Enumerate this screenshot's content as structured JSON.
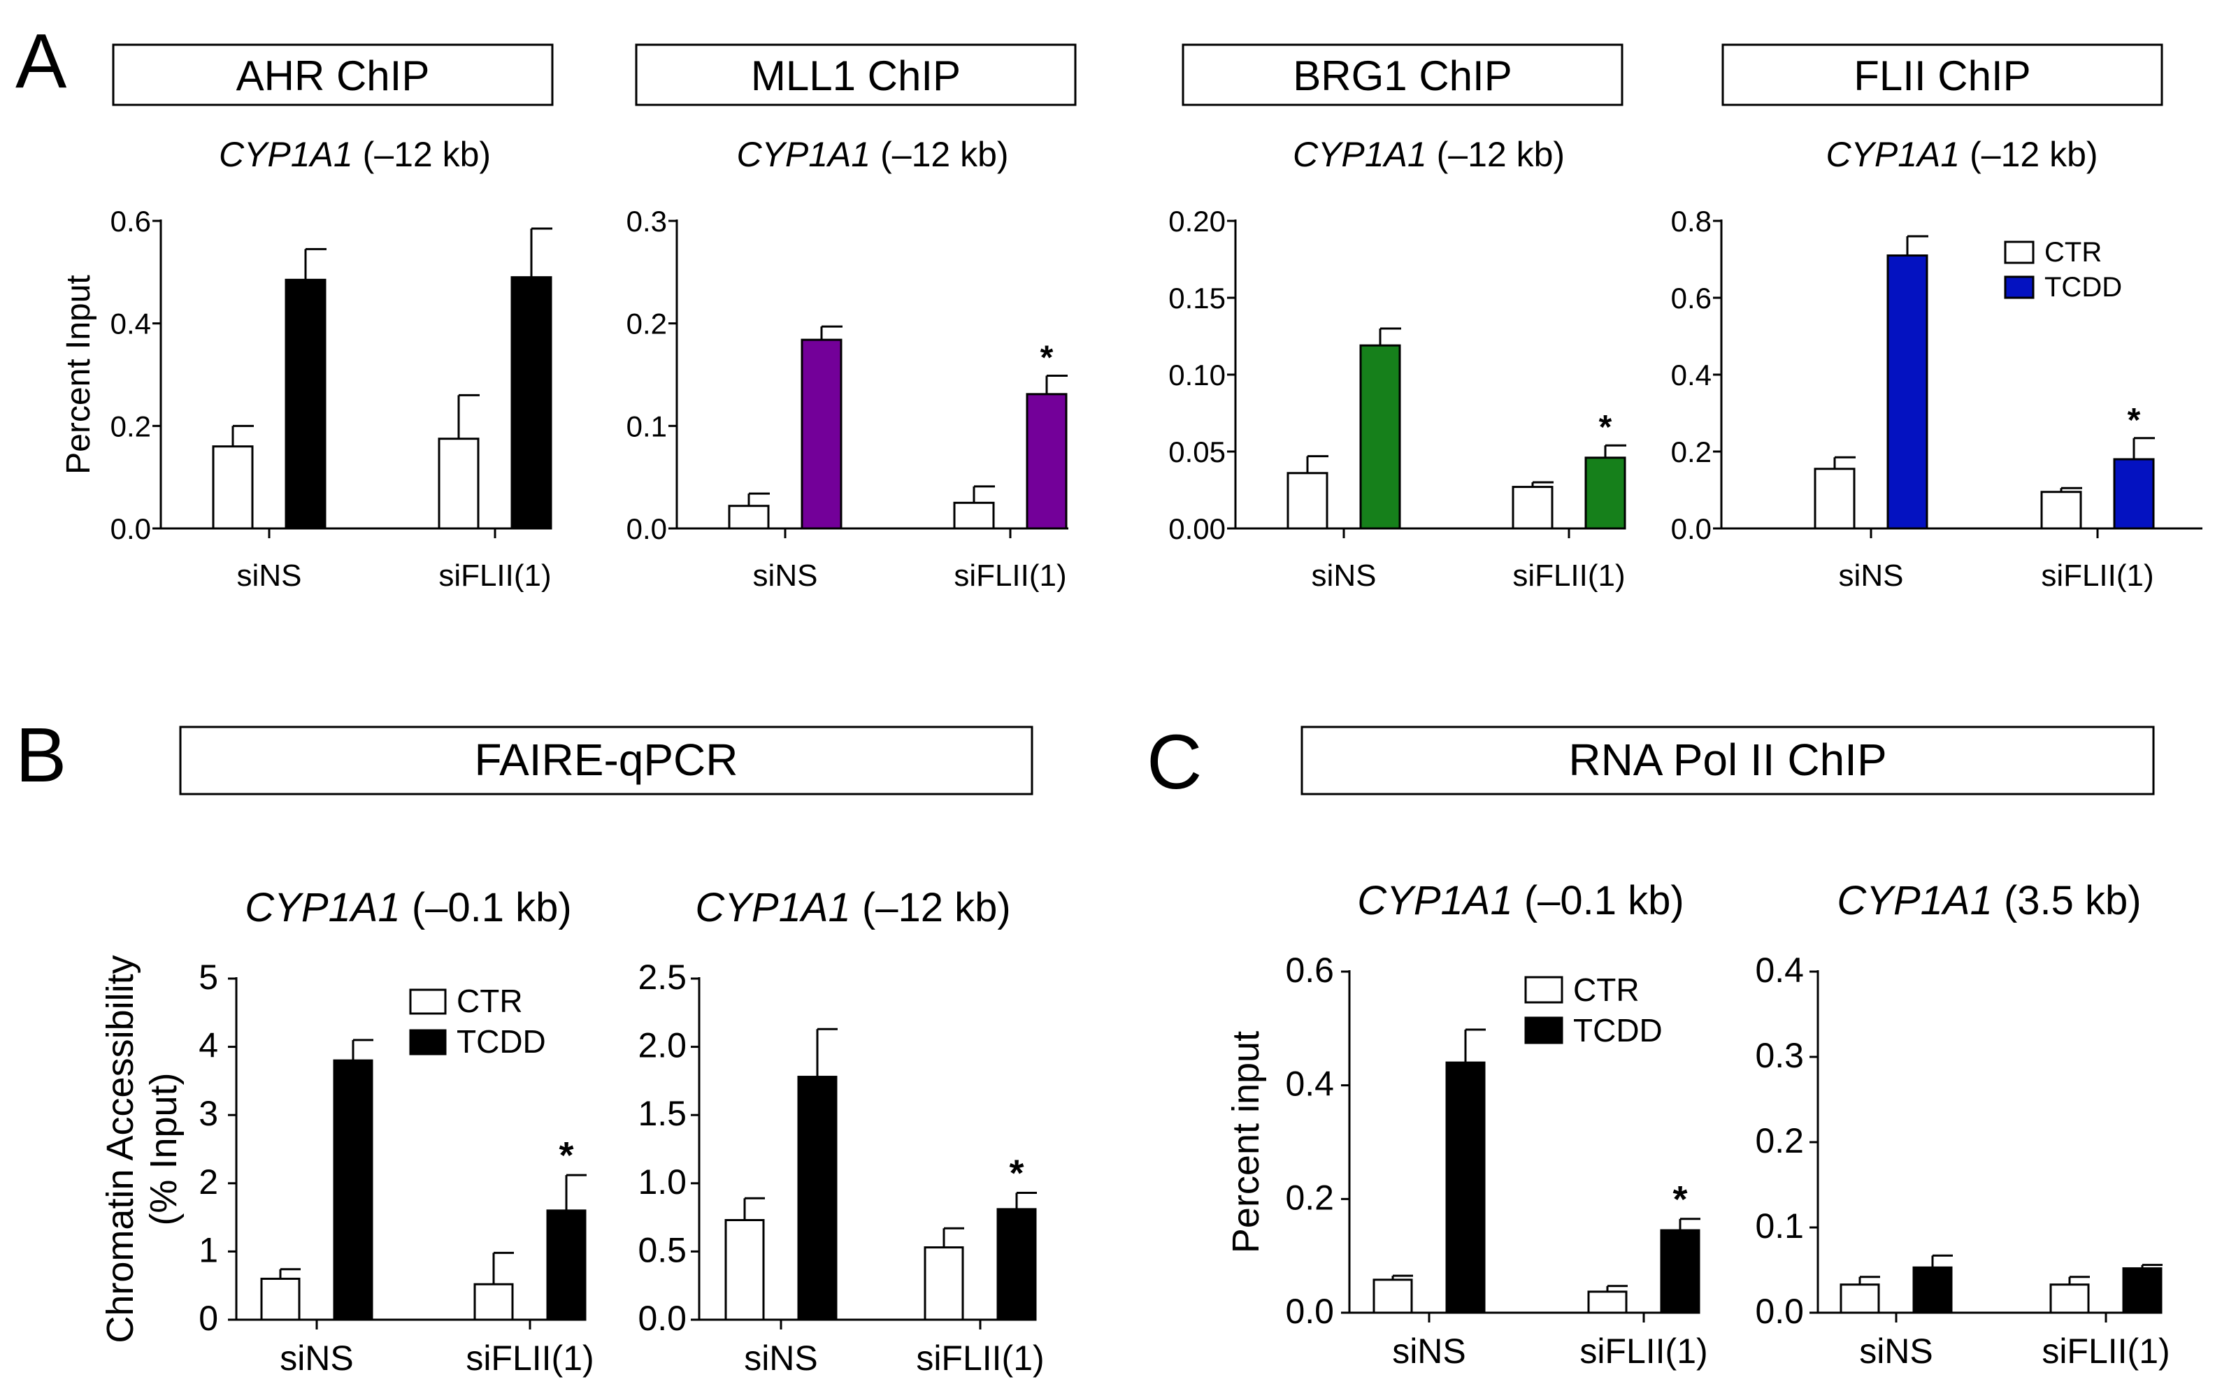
{
  "colors": {
    "ctr": "#ffffff",
    "black": "#000000",
    "purple": "#730099",
    "green": "#16801b",
    "blue": "#0412c1"
  },
  "panels": [
    {
      "letter": "A"
    },
    {
      "letter": "B",
      "header": "FAIRE-qPCR"
    },
    {
      "letter": "C",
      "header": "RNA Pol II ChIP"
    }
  ],
  "chart_data": [
    {
      "type": "bar",
      "panel": "A",
      "header": "AHR ChIP",
      "title_gene": "CYP1A1",
      "title_pos": " (–12 kb)",
      "ylabel": "Percent Input",
      "ylim": [
        0,
        0.6
      ],
      "yticks": [
        "0.0",
        "0.2",
        "0.4",
        "0.6"
      ],
      "categories": [
        "siNS",
        "siFLII(1)"
      ],
      "tcdd_color": "black",
      "legend": null,
      "series": [
        {
          "name": "CTR",
          "values": [
            0.16,
            0.175
          ],
          "errors": [
            0.04,
            0.085
          ]
        },
        {
          "name": "TCDD",
          "values": [
            0.485,
            0.49
          ],
          "errors": [
            0.06,
            0.095
          ]
        }
      ],
      "stars": [
        "",
        ""
      ]
    },
    {
      "type": "bar",
      "panel": "A",
      "header": "MLL1 ChIP",
      "title_gene": "CYP1A1",
      "title_pos": " (–12 kb)",
      "ylabel": "",
      "ylim": [
        0,
        0.3
      ],
      "yticks": [
        "0.0",
        "0.1",
        "0.2",
        "0.3"
      ],
      "categories": [
        "siNS",
        "siFLII(1)"
      ],
      "tcdd_color": "purple",
      "legend": null,
      "series": [
        {
          "name": "CTR",
          "values": [
            0.022,
            0.025
          ],
          "errors": [
            0.012,
            0.016
          ]
        },
        {
          "name": "TCDD",
          "values": [
            0.184,
            0.131
          ],
          "errors": [
            0.013,
            0.018
          ]
        }
      ],
      "stars": [
        "",
        "*"
      ]
    },
    {
      "type": "bar",
      "panel": "A",
      "header": "BRG1 ChIP",
      "title_gene": "CYP1A1",
      "title_pos": " (–12 kb)",
      "ylabel": "",
      "ylim": [
        0,
        0.2
      ],
      "yticks": [
        "0.00",
        "0.05",
        "0.10",
        "0.15",
        "0.20"
      ],
      "categories": [
        "siNS",
        "siFLII(1)"
      ],
      "tcdd_color": "green",
      "legend": null,
      "series": [
        {
          "name": "CTR",
          "values": [
            0.036,
            0.027
          ],
          "errors": [
            0.011,
            0.003
          ]
        },
        {
          "name": "TCDD",
          "values": [
            0.119,
            0.046
          ],
          "errors": [
            0.011,
            0.008
          ]
        }
      ],
      "stars": [
        "",
        "*"
      ]
    },
    {
      "type": "bar",
      "panel": "A",
      "header": "FLII ChIP",
      "title_gene": "CYP1A1",
      "title_pos": " (–12 kb)",
      "ylabel": "",
      "ylim": [
        0,
        0.8
      ],
      "yticks": [
        "0.0",
        "0.2",
        "0.4",
        "0.6",
        "0.8"
      ],
      "categories": [
        "siNS",
        "siFLII(1)"
      ],
      "tcdd_color": "blue",
      "legend": {
        "ctr": "CTR",
        "tcdd": "TCDD",
        "placement": "top-right"
      },
      "series": [
        {
          "name": "CTR",
          "values": [
            0.155,
            0.095
          ],
          "errors": [
            0.03,
            0.01
          ]
        },
        {
          "name": "TCDD",
          "values": [
            0.71,
            0.18
          ],
          "errors": [
            0.05,
            0.055
          ]
        }
      ],
      "stars": [
        "",
        "*"
      ]
    },
    {
      "type": "bar",
      "panel": "B",
      "title_gene": "CYP1A1",
      "title_pos": " (–0.1 kb)",
      "ylabel": "Chromatin Accessibility",
      "ylabel2": "(% Input)",
      "ylim": [
        0,
        5
      ],
      "yticks": [
        "0",
        "1",
        "2",
        "3",
        "4",
        "5"
      ],
      "categories": [
        "siNS",
        "siFLII(1)"
      ],
      "tcdd_color": "black",
      "legend": {
        "ctr": "CTR",
        "tcdd": "TCDD",
        "placement": "top-right"
      },
      "series": [
        {
          "name": "CTR",
          "values": [
            0.6,
            0.52
          ],
          "errors": [
            0.14,
            0.46
          ]
        },
        {
          "name": "TCDD",
          "values": [
            3.8,
            1.6
          ],
          "errors": [
            0.3,
            0.52
          ]
        }
      ],
      "stars": [
        "",
        "*"
      ]
    },
    {
      "type": "bar",
      "panel": "B",
      "title_gene": "CYP1A1",
      "title_pos": " (–12 kb)",
      "ylabel": "",
      "ylim": [
        0,
        2.5
      ],
      "yticks": [
        "0.0",
        "0.5",
        "1.0",
        "1.5",
        "2.0",
        "2.5"
      ],
      "categories": [
        "siNS",
        "siFLII(1)"
      ],
      "tcdd_color": "black",
      "legend": null,
      "series": [
        {
          "name": "CTR",
          "values": [
            0.73,
            0.53
          ],
          "errors": [
            0.16,
            0.14
          ]
        },
        {
          "name": "TCDD",
          "values": [
            1.78,
            0.81
          ],
          "errors": [
            0.35,
            0.12
          ]
        }
      ],
      "stars": [
        "",
        "*"
      ]
    },
    {
      "type": "bar",
      "panel": "C",
      "title_gene": "CYP1A1",
      "title_pos": " (–0.1 kb)",
      "ylabel": "Percent input",
      "ylim": [
        0,
        0.6
      ],
      "yticks": [
        "0.0",
        "0.2",
        "0.4",
        "0.6"
      ],
      "categories": [
        "siNS",
        "siFLII(1)"
      ],
      "tcdd_color": "black",
      "legend": {
        "ctr": "CTR",
        "tcdd": "TCDD",
        "placement": "top-right"
      },
      "series": [
        {
          "name": "CTR",
          "values": [
            0.058,
            0.037
          ],
          "errors": [
            0.007,
            0.01
          ]
        },
        {
          "name": "TCDD",
          "values": [
            0.44,
            0.145
          ],
          "errors": [
            0.058,
            0.02
          ]
        }
      ],
      "stars": [
        "",
        "*"
      ]
    },
    {
      "type": "bar",
      "panel": "C",
      "title_gene": "CYP1A1",
      "title_pos": " (3.5 kb)",
      "ylabel": "",
      "ylim": [
        0,
        0.4
      ],
      "yticks": [
        "0.0",
        "0.1",
        "0.2",
        "0.3",
        "0.4"
      ],
      "categories": [
        "siNS",
        "siFLII(1)"
      ],
      "tcdd_color": "black",
      "legend": null,
      "series": [
        {
          "name": "CTR",
          "values": [
            0.033,
            0.033
          ],
          "errors": [
            0.009,
            0.009
          ]
        },
        {
          "name": "TCDD",
          "values": [
            0.053,
            0.052
          ],
          "errors": [
            0.014,
            0.004
          ]
        }
      ],
      "stars": [
        "",
        ""
      ]
    }
  ]
}
